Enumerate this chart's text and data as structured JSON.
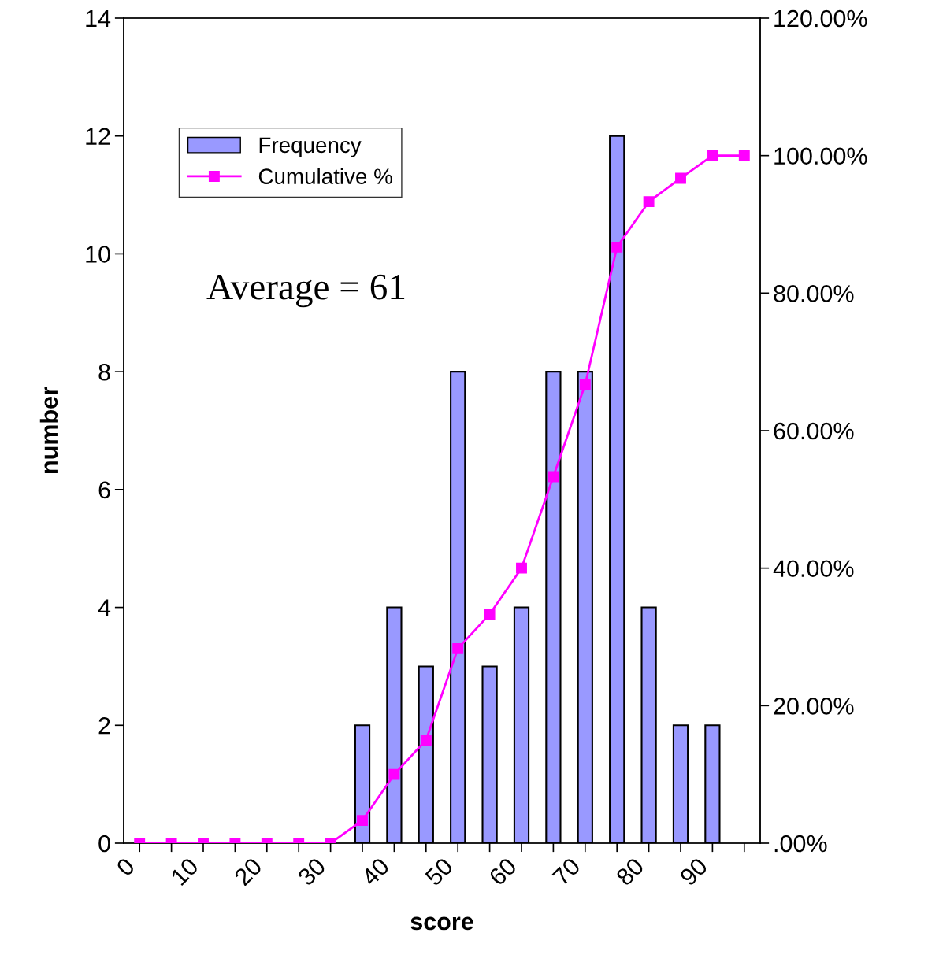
{
  "chart_data": {
    "type": "bar",
    "xlabel": "score",
    "ylabel": "number",
    "categories": [
      "0",
      null,
      "10",
      null,
      "20",
      null,
      "30",
      null,
      "40",
      null,
      "50",
      null,
      "60",
      null,
      "70",
      null,
      "80",
      null,
      "90",
      null
    ],
    "series": [
      {
        "name": "Frequency",
        "color": "#9999ff",
        "values": [
          0,
          0,
          0,
          0,
          0,
          0,
          0,
          2,
          4,
          3,
          8,
          3,
          4,
          8,
          8,
          12,
          4,
          2,
          2,
          0
        ]
      },
      {
        "name": "Cumulative %",
        "type": "line",
        "axis": "y2",
        "color": "#ff00ff",
        "marker": "square",
        "values": [
          0,
          0,
          0,
          0,
          0,
          0,
          0,
          3.3,
          10,
          15,
          28.3,
          33.3,
          40,
          53.3,
          66.7,
          86.7,
          93.3,
          96.7,
          100,
          100
        ]
      }
    ],
    "ylim": [
      0,
      14
    ],
    "yticks": [
      0,
      2,
      4,
      6,
      8,
      10,
      12,
      14
    ],
    "y2lim": [
      0,
      120
    ],
    "y2ticks": [
      {
        "value": 0,
        "label": ".00%"
      },
      {
        "value": 20,
        "label": "20.00%"
      },
      {
        "value": 40,
        "label": "40.00%"
      },
      {
        "value": 60,
        "label": "60.00%"
      },
      {
        "value": 80,
        "label": "80.00%"
      },
      {
        "value": 100,
        "label": "100.00%"
      },
      {
        "value": 120,
        "label": "120.00%"
      }
    ],
    "legend": "top left",
    "grid": false,
    "annotations": [
      "Average = 61"
    ]
  }
}
